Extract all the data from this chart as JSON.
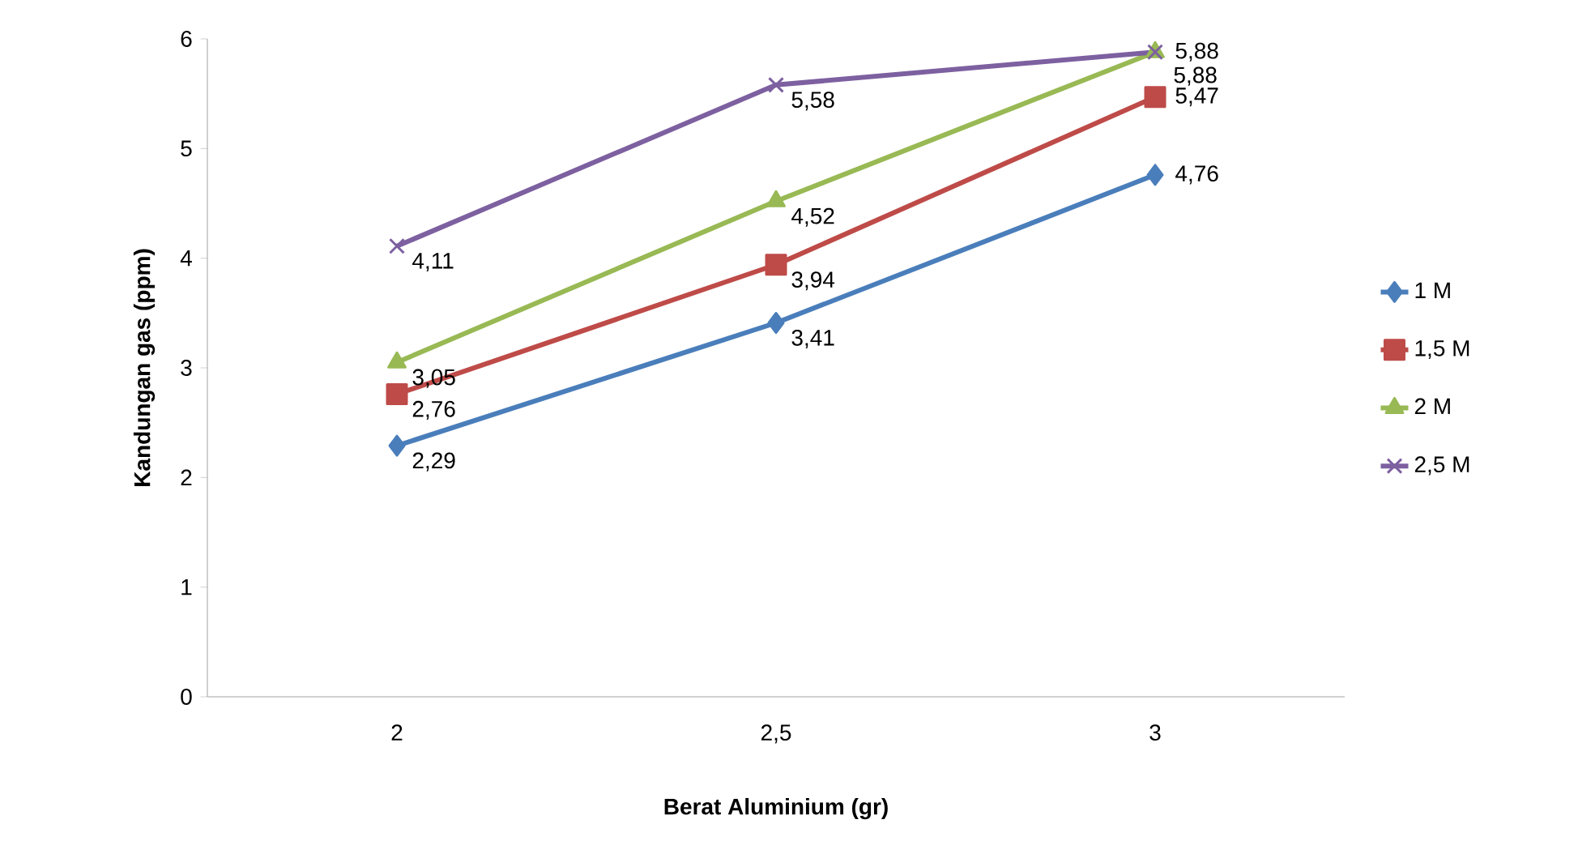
{
  "chart_data": {
    "type": "line",
    "xlabel": "Berat Aluminium (gr)",
    "ylabel": "Kandungan gas (ppm)",
    "categories": [
      "2",
      "2,5",
      "3"
    ],
    "ylim": [
      0,
      6
    ],
    "yticks": [
      0,
      1,
      2,
      3,
      4,
      5,
      6
    ],
    "grid": false,
    "legend": "right",
    "line_style": "solid",
    "series": [
      {
        "name": "1 M",
        "color": "#4a7ebb",
        "marker": "diamond",
        "values": [
          2.29,
          3.41,
          4.76
        ],
        "value_labels": [
          "2,29",
          "3,41",
          "4,76"
        ]
      },
      {
        "name": "1,5 M",
        "color": "#be4b48",
        "marker": "square",
        "values": [
          2.76,
          3.94,
          5.47
        ],
        "value_labels": [
          "2,76",
          "3,94",
          "5,47"
        ]
      },
      {
        "name": "2 M",
        "color": "#98b954",
        "marker": "triangle",
        "values": [
          3.05,
          4.52,
          5.88
        ],
        "value_labels": [
          "3,05",
          "4,52",
          "5,88"
        ]
      },
      {
        "name": "2,5 M",
        "color": "#7d60a0",
        "marker": "cross",
        "values": [
          4.11,
          5.58,
          5.88
        ],
        "value_labels": [
          "4,11",
          "5,58",
          "5,88"
        ]
      }
    ]
  }
}
